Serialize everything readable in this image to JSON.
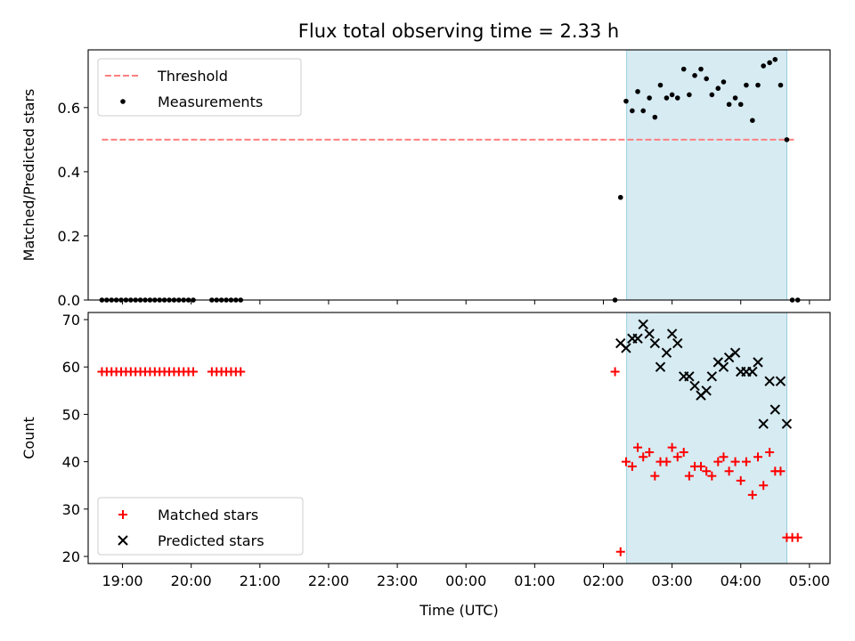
{
  "chart_data": [
    {
      "type": "scatter",
      "title": "Flux total observing time = 2.33 h",
      "ylabel": "Matched/Predicted stars",
      "xlabel": "",
      "x_unit": "hours since 00:00 UTC",
      "xlim": [
        -5.5,
        5.3
      ],
      "ylim": [
        0,
        0.78
      ],
      "yticks": [
        0.0,
        0.2,
        0.4,
        0.6
      ],
      "ytick_labels": [
        "0.0",
        "0.2",
        "0.4",
        "0.6"
      ],
      "xticks": [
        -5,
        -4,
        -3,
        -2,
        -1,
        0,
        1,
        2,
        3,
        4,
        5
      ],
      "xtick_labels": [
        "",
        "",
        "",
        "",
        "",
        "",
        "",
        "",
        "",
        "",
        ""
      ],
      "highlight_span": [
        2.34,
        4.67
      ],
      "threshold": {
        "name": "Threshold",
        "y": 0.5,
        "x_range": [
          -5.3,
          4.8
        ],
        "color": "#ff7f7f"
      },
      "legend": {
        "position": "upper-left",
        "entries": [
          "Threshold",
          "Measurements"
        ]
      },
      "series": [
        {
          "name": "Measurements",
          "color": "#000000",
          "x": [
            -5.3,
            -5.23,
            -5.16,
            -5.09,
            -5.02,
            -4.95,
            -4.88,
            -4.81,
            -4.74,
            -4.67,
            -4.6,
            -4.53,
            -4.46,
            -4.39,
            -4.32,
            -4.25,
            -4.18,
            -4.11,
            -4.04,
            -3.97,
            -3.7,
            -3.63,
            -3.56,
            -3.49,
            -3.42,
            -3.35,
            -3.28,
            2.17,
            2.25,
            2.33,
            2.42,
            2.5,
            2.58,
            2.67,
            2.75,
            2.83,
            2.92,
            3.0,
            3.08,
            3.17,
            3.25,
            3.33,
            3.42,
            3.5,
            3.58,
            3.67,
            3.75,
            3.83,
            3.92,
            4.0,
            4.08,
            4.17,
            4.25,
            4.33,
            4.42,
            4.5,
            4.58,
            4.67,
            4.75,
            4.83
          ],
          "y": [
            0,
            0,
            0,
            0,
            0,
            0,
            0,
            0,
            0,
            0,
            0,
            0,
            0,
            0,
            0,
            0,
            0,
            0,
            0,
            0,
            0,
            0,
            0,
            0,
            0,
            0,
            0,
            0,
            0.32,
            0.62,
            0.59,
            0.65,
            0.59,
            0.63,
            0.57,
            0.67,
            0.63,
            0.64,
            0.63,
            0.72,
            0.64,
            0.7,
            0.72,
            0.69,
            0.64,
            0.66,
            0.68,
            0.61,
            0.63,
            0.61,
            0.67,
            0.56,
            0.67,
            0.73,
            0.74,
            0.75,
            0.67,
            0.5,
            0,
            0
          ]
        }
      ]
    },
    {
      "type": "scatter",
      "title": "",
      "ylabel": "Count",
      "xlabel": "Time (UTC)",
      "x_unit": "hours since 00:00 UTC",
      "xlim": [
        -5.5,
        5.3
      ],
      "ylim": [
        18.5,
        71.5
      ],
      "yticks": [
        20,
        30,
        40,
        50,
        60,
        70
      ],
      "ytick_labels": [
        "20",
        "30",
        "40",
        "50",
        "60",
        "70"
      ],
      "xticks": [
        -5,
        -4,
        -3,
        -2,
        -1,
        0,
        1,
        2,
        3,
        4,
        5
      ],
      "xtick_labels": [
        "19:00",
        "20:00",
        "21:00",
        "22:00",
        "23:00",
        "00:00",
        "01:00",
        "02:00",
        "03:00",
        "04:00",
        "05:00"
      ],
      "highlight_span": [
        2.34,
        4.67
      ],
      "legend": {
        "position": "lower-left",
        "entries": [
          "Matched stars",
          "Predicted stars"
        ]
      },
      "series": [
        {
          "name": "Matched stars",
          "marker": "+",
          "color": "#ff0000",
          "x": [
            -5.3,
            -5.23,
            -5.16,
            -5.09,
            -5.02,
            -4.95,
            -4.88,
            -4.81,
            -4.74,
            -4.67,
            -4.6,
            -4.53,
            -4.46,
            -4.39,
            -4.32,
            -4.25,
            -4.18,
            -4.11,
            -4.04,
            -3.97,
            -3.7,
            -3.63,
            -3.56,
            -3.49,
            -3.42,
            -3.35,
            -3.28,
            2.17,
            2.25,
            2.33,
            2.42,
            2.5,
            2.58,
            2.67,
            2.75,
            2.83,
            2.92,
            3.0,
            3.08,
            3.17,
            3.25,
            3.33,
            3.42,
            3.5,
            3.58,
            3.67,
            3.75,
            3.83,
            3.92,
            4.0,
            4.08,
            4.17,
            4.25,
            4.33,
            4.42,
            4.5,
            4.58,
            4.67,
            4.75,
            4.83
          ],
          "y": [
            59,
            59,
            59,
            59,
            59,
            59,
            59,
            59,
            59,
            59,
            59,
            59,
            59,
            59,
            59,
            59,
            59,
            59,
            59,
            59,
            59,
            59,
            59,
            59,
            59,
            59,
            59,
            59,
            21,
            40,
            39,
            43,
            41,
            42,
            37,
            40,
            40,
            43,
            41,
            42,
            37,
            39,
            39,
            38,
            37,
            40,
            41,
            38,
            40,
            36,
            40,
            33,
            41,
            35,
            42,
            38,
            38,
            24,
            24,
            24
          ]
        },
        {
          "name": "Predicted stars",
          "marker": "x",
          "color": "#000000",
          "x": [
            2.25,
            2.33,
            2.42,
            2.5,
            2.58,
            2.67,
            2.75,
            2.83,
            2.92,
            3.0,
            3.08,
            3.17,
            3.25,
            3.33,
            3.42,
            3.5,
            3.58,
            3.67,
            3.75,
            3.83,
            3.92,
            4.0,
            4.08,
            4.17,
            4.25,
            4.33,
            4.42,
            4.5,
            4.58,
            4.67
          ],
          "y": [
            65,
            64,
            66,
            66,
            69,
            67,
            65,
            60,
            63,
            67,
            65,
            58,
            58,
            56,
            54,
            55,
            58,
            61,
            60,
            62,
            63,
            59,
            59,
            59,
            61,
            48,
            57,
            51,
            57,
            48
          ]
        }
      ]
    }
  ]
}
